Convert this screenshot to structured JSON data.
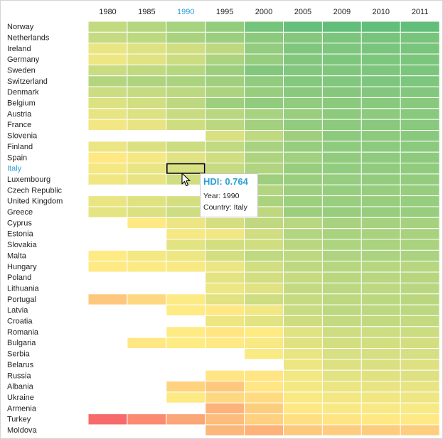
{
  "chart_data": {
    "type": "heatmap",
    "title": "",
    "xlabel": "",
    "ylabel": "",
    "x": [
      "1980",
      "1985",
      "1990",
      "1995",
      "2000",
      "2005",
      "2009",
      "2010",
      "2011"
    ],
    "y": [
      "Norway",
      "Netherlands",
      "Ireland",
      "Germany",
      "Sweden",
      "Switzerland",
      "Denmark",
      "Belgium",
      "Austria",
      "France",
      "Slovenia",
      "Finland",
      "Spain",
      "Italy",
      "Luxembourg",
      "Czech Republic",
      "United Kingdom",
      "Greece",
      "Cyprus",
      "Estonia",
      "Slovakia",
      "Malta",
      "Hungary",
      "Poland",
      "Lithuania",
      "Portugal",
      "Latvia",
      "Croatia",
      "Romania",
      "Bulgaria",
      "Serbia",
      "Belarus",
      "Russia",
      "Albania",
      "Ukraine",
      "Armenia",
      "Turkey",
      "Moldova"
    ],
    "values": [
      [
        0.796,
        0.817,
        0.838,
        0.868,
        0.913,
        0.938,
        0.941,
        0.941,
        0.943
      ],
      [
        0.792,
        0.806,
        0.835,
        0.857,
        0.882,
        0.89,
        0.905,
        0.91,
        0.91
      ],
      [
        0.735,
        0.753,
        0.775,
        0.803,
        0.869,
        0.898,
        0.902,
        0.908,
        0.908
      ],
      [
        0.73,
        0.749,
        0.782,
        0.83,
        0.864,
        0.895,
        0.9,
        0.903,
        0.905
      ],
      [
        0.785,
        0.798,
        0.815,
        0.856,
        0.894,
        0.896,
        0.898,
        0.901,
        0.904
      ],
      [
        0.818,
        0.826,
        0.833,
        0.849,
        0.873,
        0.892,
        0.897,
        0.901,
        0.903
      ],
      [
        0.783,
        0.791,
        0.806,
        0.829,
        0.862,
        0.883,
        0.891,
        0.895,
        0.895
      ],
      [
        0.757,
        0.773,
        0.805,
        0.854,
        0.873,
        0.874,
        0.882,
        0.886,
        0.886
      ],
      [
        0.74,
        0.757,
        0.786,
        0.812,
        0.839,
        0.86,
        0.877,
        0.879,
        0.885
      ],
      [
        0.722,
        0.739,
        0.777,
        0.807,
        0.846,
        0.87,
        0.879,
        0.883,
        0.884
      ],
      [
        null,
        null,
        null,
        0.762,
        0.801,
        0.85,
        0.877,
        0.879,
        0.884
      ],
      [
        0.734,
        0.759,
        0.783,
        0.798,
        0.837,
        0.865,
        0.875,
        0.88,
        0.882
      ],
      [
        0.698,
        0.719,
        0.749,
        0.776,
        0.826,
        0.847,
        0.874,
        0.876,
        0.878
      ],
      [
        0.718,
        0.737,
        0.764,
        0.79,
        0.825,
        0.861,
        0.87,
        0.873,
        0.874
      ],
      [
        0.726,
        0.738,
        0.776,
        0.819,
        0.854,
        0.86,
        0.865,
        0.867,
        0.867
      ],
      [
        null,
        null,
        null,
        0.802,
        0.821,
        0.853,
        0.863,
        0.865,
        0.865
      ],
      [
        0.735,
        0.75,
        0.768,
        0.822,
        0.833,
        0.855,
        0.86,
        0.862,
        0.863
      ],
      [
        0.743,
        0.759,
        0.778,
        0.801,
        0.802,
        0.856,
        0.861,
        0.862,
        0.861
      ],
      [
        null,
        0.699,
        0.733,
        0.768,
        0.8,
        0.81,
        0.837,
        0.84,
        0.84
      ],
      [
        null,
        null,
        0.717,
        0.724,
        0.776,
        0.821,
        0.835,
        0.835,
        0.835
      ],
      [
        null,
        null,
        0.747,
        0.771,
        0.776,
        0.811,
        0.827,
        0.834,
        0.834
      ],
      [
        0.704,
        0.721,
        0.73,
        0.77,
        0.801,
        0.805,
        0.826,
        0.832,
        0.832
      ],
      [
        0.7,
        0.709,
        0.712,
        0.734,
        0.774,
        0.805,
        0.814,
        0.814,
        0.816
      ],
      [
        null,
        null,
        null,
        0.744,
        0.77,
        0.79,
        0.809,
        0.811,
        0.813
      ],
      [
        null,
        null,
        null,
        0.732,
        0.749,
        0.793,
        0.806,
        0.805,
        0.81
      ],
      [
        0.639,
        0.667,
        0.708,
        0.749,
        0.778,
        0.79,
        0.805,
        0.807,
        0.809
      ],
      [
        null,
        null,
        0.705,
        0.697,
        0.725,
        0.784,
        0.804,
        0.805,
        0.805
      ],
      [
        null,
        null,
        null,
        0.729,
        0.748,
        0.778,
        0.795,
        0.797,
        0.796
      ],
      [
        null,
        null,
        0.703,
        0.693,
        0.704,
        0.749,
        0.779,
        0.78,
        0.781
      ],
      [
        null,
        0.695,
        0.704,
        0.7,
        0.714,
        0.75,
        0.77,
        0.771,
        0.771
      ],
      [
        null,
        null,
        null,
        null,
        0.71,
        0.735,
        0.764,
        0.766,
        0.766
      ],
      [
        null,
        null,
        null,
        null,
        null,
        0.729,
        0.756,
        0.761,
        0.756
      ],
      [
        null,
        null,
        null,
        0.691,
        0.691,
        0.725,
        0.747,
        0.751,
        0.755
      ],
      [
        null,
        null,
        0.656,
        0.636,
        0.691,
        0.721,
        0.734,
        0.738,
        0.739
      ],
      [
        null,
        null,
        0.706,
        0.668,
        0.674,
        0.714,
        0.723,
        0.726,
        0.729
      ],
      [
        null,
        null,
        null,
        0.6,
        0.648,
        0.695,
        0.713,
        0.712,
        0.716
      ],
      [
        0.463,
        0.525,
        0.576,
        0.616,
        0.653,
        0.68,
        0.69,
        0.698,
        0.699
      ],
      [
        null,
        null,
        null,
        0.607,
        0.597,
        0.64,
        0.645,
        0.648,
        0.649
      ]
    ],
    "color_scale": {
      "low": "#f8696b",
      "mid": "#ffeb84",
      "high": "#63be7b"
    },
    "selected": {
      "x": "1990",
      "y": "Italy"
    },
    "tooltip": {
      "value_label": "HDI: 0.764",
      "year_line": "Year: 1990",
      "country_line": "Country: Italy"
    },
    "grid": true,
    "legend": "none"
  }
}
